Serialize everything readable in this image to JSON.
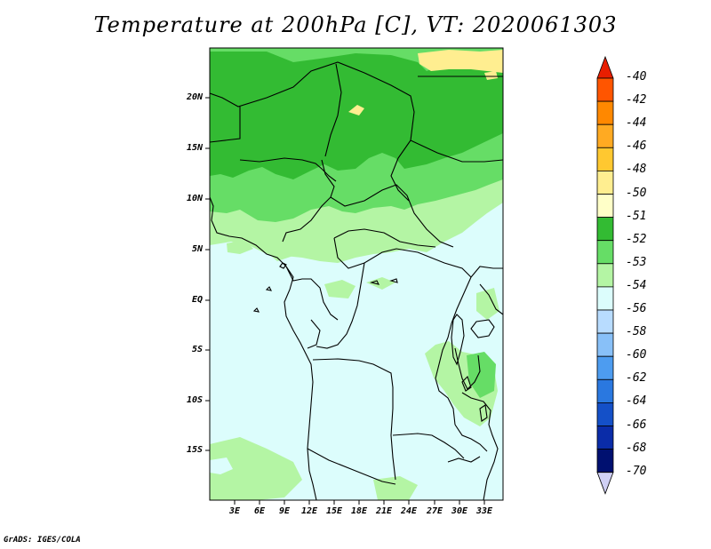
{
  "title": "Temperature at 200hPa [C], VT: 2020061303",
  "credit": "GrADS: IGES/COLA",
  "lat_labels": [
    "20N",
    "15N",
    "10N",
    "5N",
    "EQ",
    "5S",
    "10S",
    "15S"
  ],
  "lon_labels": [
    "3E",
    "6E",
    "9E",
    "12E",
    "15E",
    "18E",
    "21E",
    "24E",
    "27E",
    "30E",
    "33E"
  ],
  "legend": {
    "labels": [
      "-40",
      "-42",
      "-44",
      "-46",
      "-48",
      "-50",
      "-51",
      "-52",
      "-53",
      "-54",
      "-56",
      "-58",
      "-60",
      "-62",
      "-64",
      "-66",
      "-68",
      "-70"
    ],
    "colors": [
      "#ff2a00",
      "#ff5500",
      "#ff8800",
      "#ffaa22",
      "#ffc830",
      "#ffee90",
      "#ffffc8",
      "#33bb33",
      "#66dd66",
      "#b4f5a4",
      "#dcfdfc",
      "#b8dcff",
      "#88c0f8",
      "#4d9cf0",
      "#2a78e0",
      "#1450c8",
      "#0a2ca8",
      "#001070"
    ],
    "top_color": "#e81e00",
    "bottom_color": "#d0d0f5"
  }
}
